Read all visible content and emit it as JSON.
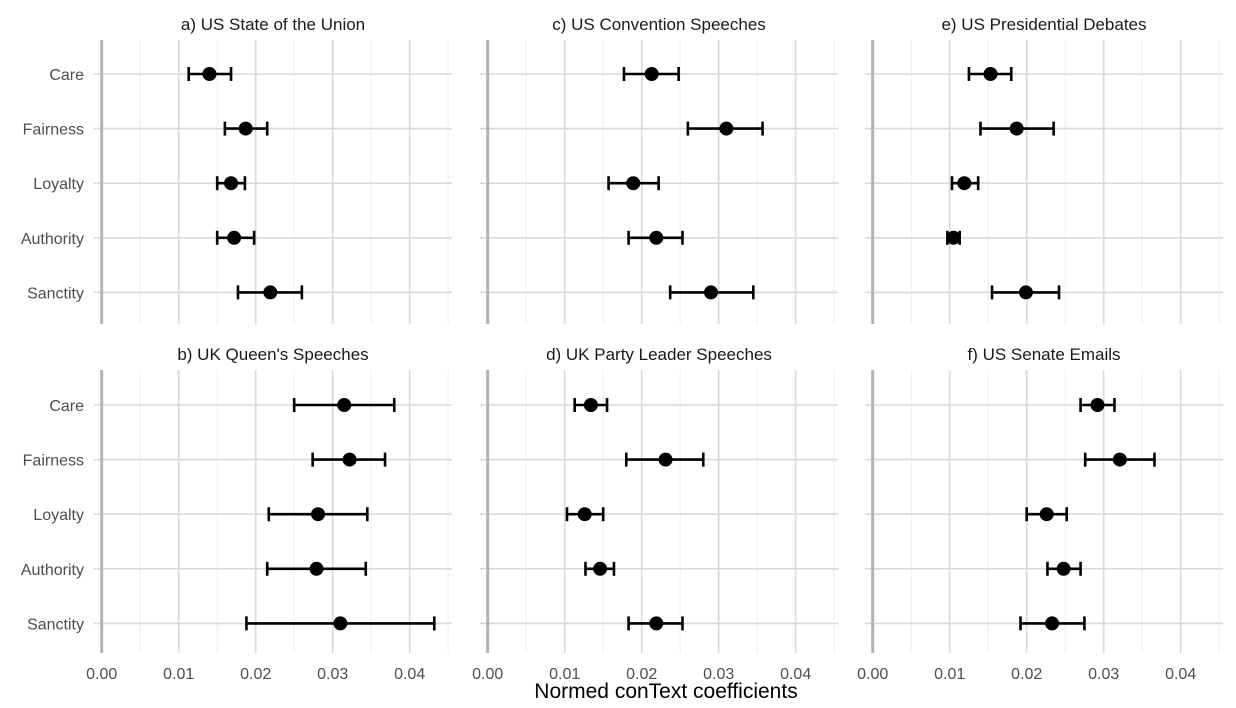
{
  "chart_data": {
    "type": "scatter",
    "subtype": "dot-and-whisker, faceted 3x2",
    "xlabel": "Normed conText coefficients",
    "xlim": [
      -0.001,
      0.0455
    ],
    "x_ticks": [
      "0.00",
      "0.01",
      "0.02",
      "0.03",
      "0.04"
    ],
    "x_tick_values": [
      0,
      0.01,
      0.02,
      0.03,
      0.04
    ],
    "categories": [
      "Care",
      "Fairness",
      "Loyalty",
      "Authority",
      "Sanctity"
    ],
    "grid": true,
    "point_color": "#000000",
    "panels": [
      {
        "title": "a) US State of the Union",
        "points": [
          {
            "category": "Care",
            "value": 0.014,
            "low": 0.0113,
            "high": 0.0168
          },
          {
            "category": "Fairness",
            "value": 0.0187,
            "low": 0.016,
            "high": 0.0215
          },
          {
            "category": "Loyalty",
            "value": 0.0168,
            "low": 0.015,
            "high": 0.0186
          },
          {
            "category": "Authority",
            "value": 0.0172,
            "low": 0.015,
            "high": 0.0198
          },
          {
            "category": "Sanctity",
            "value": 0.0219,
            "low": 0.0177,
            "high": 0.026
          }
        ]
      },
      {
        "title": "b) UK Queen's Speeches",
        "points": [
          {
            "category": "Care",
            "value": 0.0315,
            "low": 0.025,
            "high": 0.038
          },
          {
            "category": "Fairness",
            "value": 0.0322,
            "low": 0.0274,
            "high": 0.0368
          },
          {
            "category": "Loyalty",
            "value": 0.0281,
            "low": 0.0217,
            "high": 0.0345
          },
          {
            "category": "Authority",
            "value": 0.0279,
            "low": 0.0215,
            "high": 0.0343
          },
          {
            "category": "Sanctity",
            "value": 0.031,
            "low": 0.0188,
            "high": 0.0432
          }
        ]
      },
      {
        "title": "c) US Convention Speeches",
        "points": [
          {
            "category": "Care",
            "value": 0.0213,
            "low": 0.0177,
            "high": 0.0248
          },
          {
            "category": "Fairness",
            "value": 0.031,
            "low": 0.026,
            "high": 0.0357
          },
          {
            "category": "Loyalty",
            "value": 0.0189,
            "low": 0.0157,
            "high": 0.0222
          },
          {
            "category": "Authority",
            "value": 0.0219,
            "low": 0.0183,
            "high": 0.0253
          },
          {
            "category": "Sanctity",
            "value": 0.029,
            "low": 0.0237,
            "high": 0.0345
          }
        ]
      },
      {
        "title": "d) UK Party Leader Speeches",
        "points": [
          {
            "category": "Care",
            "value": 0.0134,
            "low": 0.0113,
            "high": 0.0155
          },
          {
            "category": "Fairness",
            "value": 0.0231,
            "low": 0.018,
            "high": 0.028
          },
          {
            "category": "Loyalty",
            "value": 0.0126,
            "low": 0.0103,
            "high": 0.015
          },
          {
            "category": "Authority",
            "value": 0.0146,
            "low": 0.0127,
            "high": 0.0164
          },
          {
            "category": "Sanctity",
            "value": 0.0219,
            "low": 0.0183,
            "high": 0.0253
          }
        ]
      },
      {
        "title": "e) US Presidential Debates",
        "points": [
          {
            "category": "Care",
            "value": 0.0153,
            "low": 0.0125,
            "high": 0.018
          },
          {
            "category": "Fairness",
            "value": 0.0187,
            "low": 0.014,
            "high": 0.0235
          },
          {
            "category": "Loyalty",
            "value": 0.0119,
            "low": 0.0103,
            "high": 0.0137
          },
          {
            "category": "Authority",
            "value": 0.0105,
            "low": 0.0097,
            "high": 0.0113
          },
          {
            "category": "Sanctity",
            "value": 0.0199,
            "low": 0.0155,
            "high": 0.0242
          }
        ]
      },
      {
        "title": "f) US Senate Emails",
        "points": [
          {
            "category": "Care",
            "value": 0.0292,
            "low": 0.027,
            "high": 0.0314
          },
          {
            "category": "Fairness",
            "value": 0.0321,
            "low": 0.0276,
            "high": 0.0366
          },
          {
            "category": "Loyalty",
            "value": 0.0226,
            "low": 0.02,
            "high": 0.0252
          },
          {
            "category": "Authority",
            "value": 0.0248,
            "low": 0.0227,
            "high": 0.027
          },
          {
            "category": "Sanctity",
            "value": 0.0233,
            "low": 0.0192,
            "high": 0.0275
          }
        ]
      }
    ]
  }
}
